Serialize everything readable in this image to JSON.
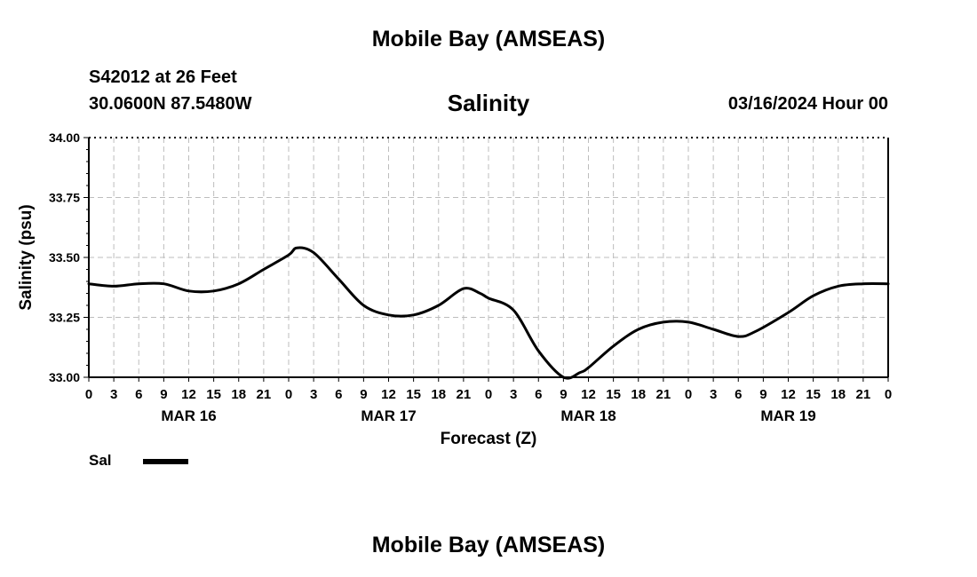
{
  "header": {
    "title": "Mobile Bay (AMSEAS)",
    "station": "S42012 at 26 Feet",
    "coords": "30.0600N  87.5480W",
    "parameter": "Salinity",
    "datetime": "03/16/2024 Hour 00"
  },
  "footer": {
    "title": "Mobile Bay (AMSEAS)"
  },
  "legend": {
    "label": "Sal",
    "color": "#000000"
  },
  "chart_data": {
    "type": "line",
    "title": "Salinity",
    "xlabel": "Forecast (Z)",
    "ylabel": "Salinity (psu)",
    "ylim": [
      33.0,
      34.0
    ],
    "xlim": [
      0,
      96
    ],
    "grid": true,
    "legend_position": "bottom-left",
    "y_ticks": [
      "33.00",
      "33.25",
      "33.50",
      "33.75",
      "34.00"
    ],
    "x_ticks": [
      "0",
      "3",
      "6",
      "9",
      "12",
      "15",
      "18",
      "21",
      "0",
      "3",
      "6",
      "9",
      "12",
      "15",
      "18",
      "21",
      "0",
      "3",
      "6",
      "9",
      "12",
      "15",
      "18",
      "21",
      "0",
      "3",
      "6",
      "9",
      "12",
      "15",
      "18",
      "21",
      "0"
    ],
    "date_labels": [
      {
        "label": "MAR 16",
        "hour": 12
      },
      {
        "label": "MAR 17",
        "hour": 36
      },
      {
        "label": "MAR 18",
        "hour": 60
      },
      {
        "label": "MAR 19",
        "hour": 84
      }
    ],
    "series": [
      {
        "name": "Sal",
        "color": "#000000",
        "x": [
          0,
          3,
          6,
          9,
          12,
          15,
          18,
          21,
          24,
          25,
          27,
          30,
          33,
          36,
          39,
          42,
          45,
          47,
          48,
          51,
          54,
          57,
          59,
          60,
          63,
          66,
          69,
          72,
          75,
          78,
          80,
          84,
          87,
          90,
          93,
          96
        ],
        "y": [
          33.39,
          33.38,
          33.39,
          33.39,
          33.36,
          33.36,
          33.39,
          33.45,
          33.51,
          33.54,
          33.52,
          33.41,
          33.3,
          33.26,
          33.26,
          33.3,
          33.37,
          33.35,
          33.33,
          33.28,
          33.11,
          33.0,
          33.02,
          33.04,
          33.13,
          33.2,
          33.23,
          33.23,
          33.2,
          33.17,
          33.19,
          33.27,
          33.34,
          33.38,
          33.39,
          33.39
        ]
      }
    ]
  }
}
